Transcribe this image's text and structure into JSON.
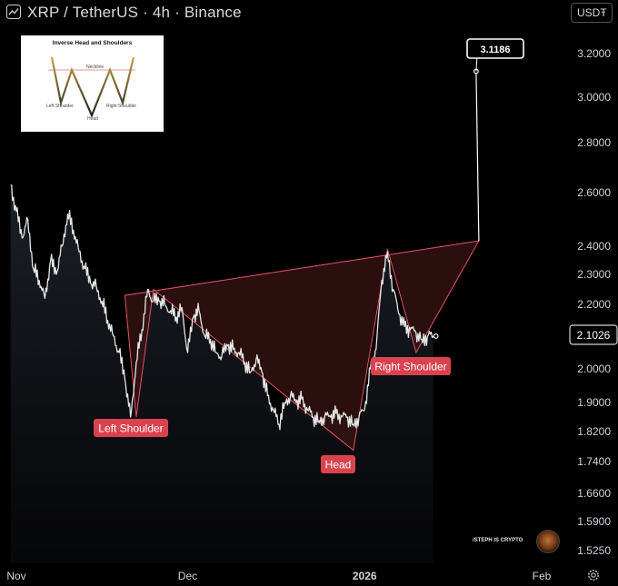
{
  "header": {
    "title": "XRP / TetherUS · 4h · Binance",
    "currency": "USDT"
  },
  "inset": {
    "title": "Inverse Head and Shoulders",
    "neckline": "Neckline",
    "left_shoulder": "Left Shoulder",
    "head": "Head",
    "right_shoulder": "Right Shoulder"
  },
  "watermark": "/STEPH IS CRYPTO",
  "colors": {
    "background": "#000000",
    "price_line": "#e6e6e6",
    "pattern_fill": "#3a1414",
    "pattern_stroke": "#e05260",
    "label_bg": "#d9434f"
  },
  "icons": [
    "tradingview-logo-icon",
    "chevron-down-icon",
    "settings-gear-icon"
  ],
  "chart_data": {
    "type": "line",
    "title": "XRP / TetherUS · 4h · Binance",
    "y_ticks": [
      3.2,
      3.0,
      2.8,
      2.6,
      2.4,
      2.3,
      2.2,
      2.0,
      1.9,
      1.82,
      1.74,
      1.66,
      1.59,
      1.525
    ],
    "y_tick_labels": [
      "3.2000",
      "3.0000",
      "2.8000",
      "2.6000",
      "2.4000",
      "2.3000",
      "2.2000",
      "2.0000",
      "1.9000",
      "1.8200",
      "1.7400",
      "1.6600",
      "1.5900",
      "1.5250"
    ],
    "x_ticks": [
      "2025-11-01",
      "2025-12-01",
      "2026-01-01",
      "2026-02-01"
    ],
    "x_tick_labels": [
      "Nov",
      "Dec",
      "2026",
      "Feb"
    ],
    "x_range": [
      "2025-11-01",
      "2026-02-07"
    ],
    "y_scale": "log",
    "grid": false,
    "last_price": 2.1026,
    "last_price_label": "2.1026",
    "target_price": 3.1186,
    "target_label": "3.1186",
    "series": [
      {
        "values": [
          [
            "2025-10-31",
            2.63
          ],
          [
            "2025-11-01",
            2.53
          ],
          [
            "2025-11-02",
            2.43
          ],
          [
            "2025-11-03",
            2.5
          ],
          [
            "2025-11-04",
            2.32
          ],
          [
            "2025-11-05",
            2.28
          ],
          [
            "2025-11-06",
            2.22
          ],
          [
            "2025-11-07",
            2.35
          ],
          [
            "2025-11-08",
            2.3
          ],
          [
            "2025-11-09",
            2.4
          ],
          [
            "2025-11-10",
            2.52
          ],
          [
            "2025-11-11",
            2.46
          ],
          [
            "2025-11-12",
            2.38
          ],
          [
            "2025-11-13",
            2.32
          ],
          [
            "2025-11-14",
            2.27
          ],
          [
            "2025-11-15",
            2.26
          ],
          [
            "2025-11-16",
            2.21
          ],
          [
            "2025-11-17",
            2.15
          ],
          [
            "2025-11-18",
            2.1
          ],
          [
            "2025-11-19",
            2.05
          ],
          [
            "2025-11-20",
            1.97
          ],
          [
            "2025-11-21",
            1.86
          ],
          [
            "2025-11-22",
            2.02
          ],
          [
            "2025-11-23",
            2.12
          ],
          [
            "2025-11-24",
            2.25
          ],
          [
            "2025-11-25",
            2.21
          ],
          [
            "2025-11-26",
            2.21
          ],
          [
            "2025-11-27",
            2.2
          ],
          [
            "2025-11-28",
            2.18
          ],
          [
            "2025-11-29",
            2.16
          ],
          [
            "2025-11-30",
            2.19
          ],
          [
            "2025-12-01",
            2.05
          ],
          [
            "2025-12-02",
            2.16
          ],
          [
            "2025-12-03",
            2.18
          ],
          [
            "2025-12-04",
            2.1
          ],
          [
            "2025-12-05",
            2.09
          ],
          [
            "2025-12-06",
            2.05
          ],
          [
            "2025-12-07",
            2.04
          ],
          [
            "2025-12-08",
            2.07
          ],
          [
            "2025-12-09",
            2.06
          ],
          [
            "2025-12-10",
            2.05
          ],
          [
            "2025-12-11",
            2.02
          ],
          [
            "2025-12-12",
            1.99
          ],
          [
            "2025-12-13",
            2.03
          ],
          [
            "2025-12-14",
            1.99
          ],
          [
            "2025-12-15",
            1.92
          ],
          [
            "2025-12-16",
            1.88
          ],
          [
            "2025-12-17",
            1.84
          ],
          [
            "2025-12-18",
            1.9
          ],
          [
            "2025-12-19",
            1.92
          ],
          [
            "2025-12-20",
            1.9
          ],
          [
            "2025-12-21",
            1.91
          ],
          [
            "2025-12-22",
            1.88
          ],
          [
            "2025-12-23",
            1.86
          ],
          [
            "2025-12-24",
            1.85
          ],
          [
            "2025-12-25",
            1.86
          ],
          [
            "2025-12-26",
            1.86
          ],
          [
            "2025-12-27",
            1.87
          ],
          [
            "2025-12-28",
            1.86
          ],
          [
            "2025-12-29",
            1.86
          ],
          [
            "2025-12-30",
            1.84
          ],
          [
            "2025-12-31",
            1.86
          ],
          [
            "2026-01-01",
            1.88
          ],
          [
            "2026-01-02",
            2.0
          ],
          [
            "2026-01-03",
            2.06
          ],
          [
            "2026-01-04",
            2.28
          ],
          [
            "2026-01-05",
            2.38
          ],
          [
            "2026-01-06",
            2.25
          ],
          [
            "2026-01-07",
            2.17
          ],
          [
            "2026-01-08",
            2.13
          ],
          [
            "2026-01-09",
            2.12
          ],
          [
            "2026-01-10",
            2.11
          ],
          [
            "2026-01-11",
            2.09
          ],
          [
            "2026-01-12",
            2.1
          ],
          [
            "2026-01-13",
            2.1
          ]
        ]
      }
    ],
    "annotations": [
      {
        "text": "Left Shoulder",
        "x": "2025-11-22",
        "y": 1.86
      },
      {
        "text": "Head",
        "x": "2025-12-30",
        "y": 1.77
      },
      {
        "text": "Right Shoulder",
        "x": "2026-01-10",
        "y": 2.05
      },
      {
        "text": "3.1186",
        "x": "2026-01-21",
        "y": 3.1186
      }
    ],
    "pattern": {
      "neckline": [
        [
          "2025-11-20",
          2.23
        ],
        [
          "2026-01-21",
          2.42
        ]
      ],
      "vertices": [
        [
          "2025-11-20",
          2.23
        ],
        [
          "2025-11-22",
          1.86
        ],
        [
          "2025-11-25",
          2.25
        ],
        [
          "2025-12-30",
          1.77
        ],
        [
          "2026-01-05",
          2.39
        ],
        [
          "2026-01-10",
          2.05
        ],
        [
          "2026-01-21",
          2.42
        ]
      ]
    }
  }
}
